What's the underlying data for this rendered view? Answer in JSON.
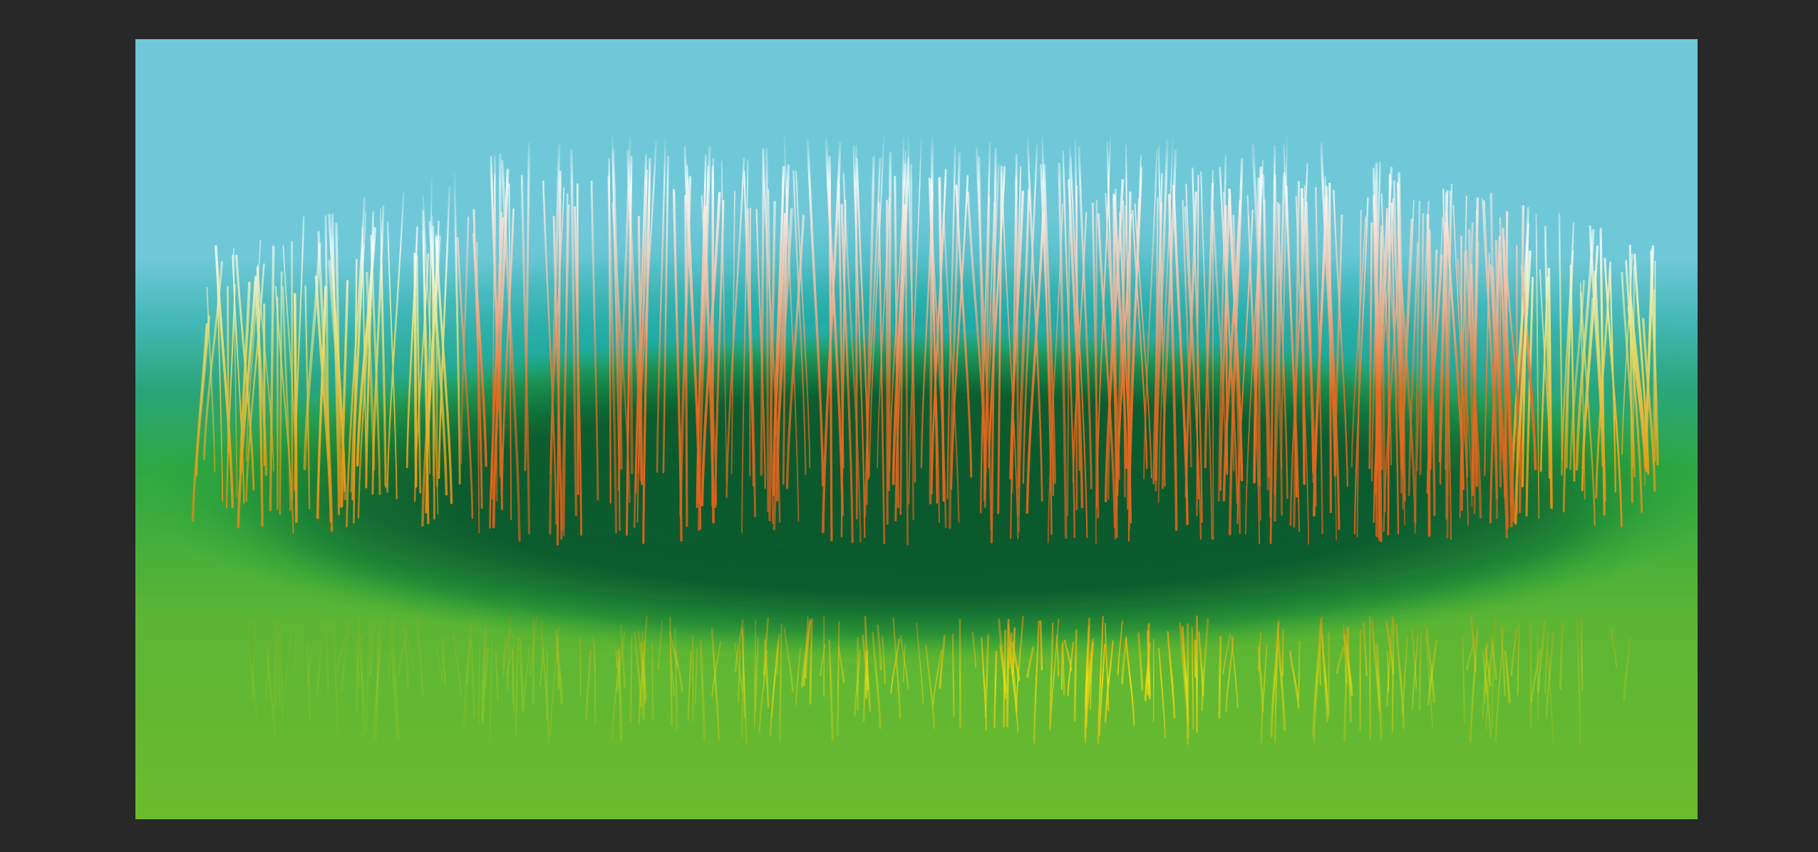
{
  "workspace": {
    "background_color": "#282828"
  },
  "canvas": {
    "sky_color": "#6fc8d8",
    "teal_band_color": "#12a8a0",
    "dark_green_color": "#075a2e",
    "mid_green_color": "#28a83a",
    "light_green_color": "#6bbb2e",
    "upper_strand_colors": [
      "#ffffff",
      "#f0b090",
      "#e86a20"
    ],
    "upper_strand_side_colors": [
      "#ffffff",
      "#e8e070",
      "#e8a018"
    ],
    "lower_strand_colors": [
      "#f0e010",
      "#e89010"
    ]
  }
}
